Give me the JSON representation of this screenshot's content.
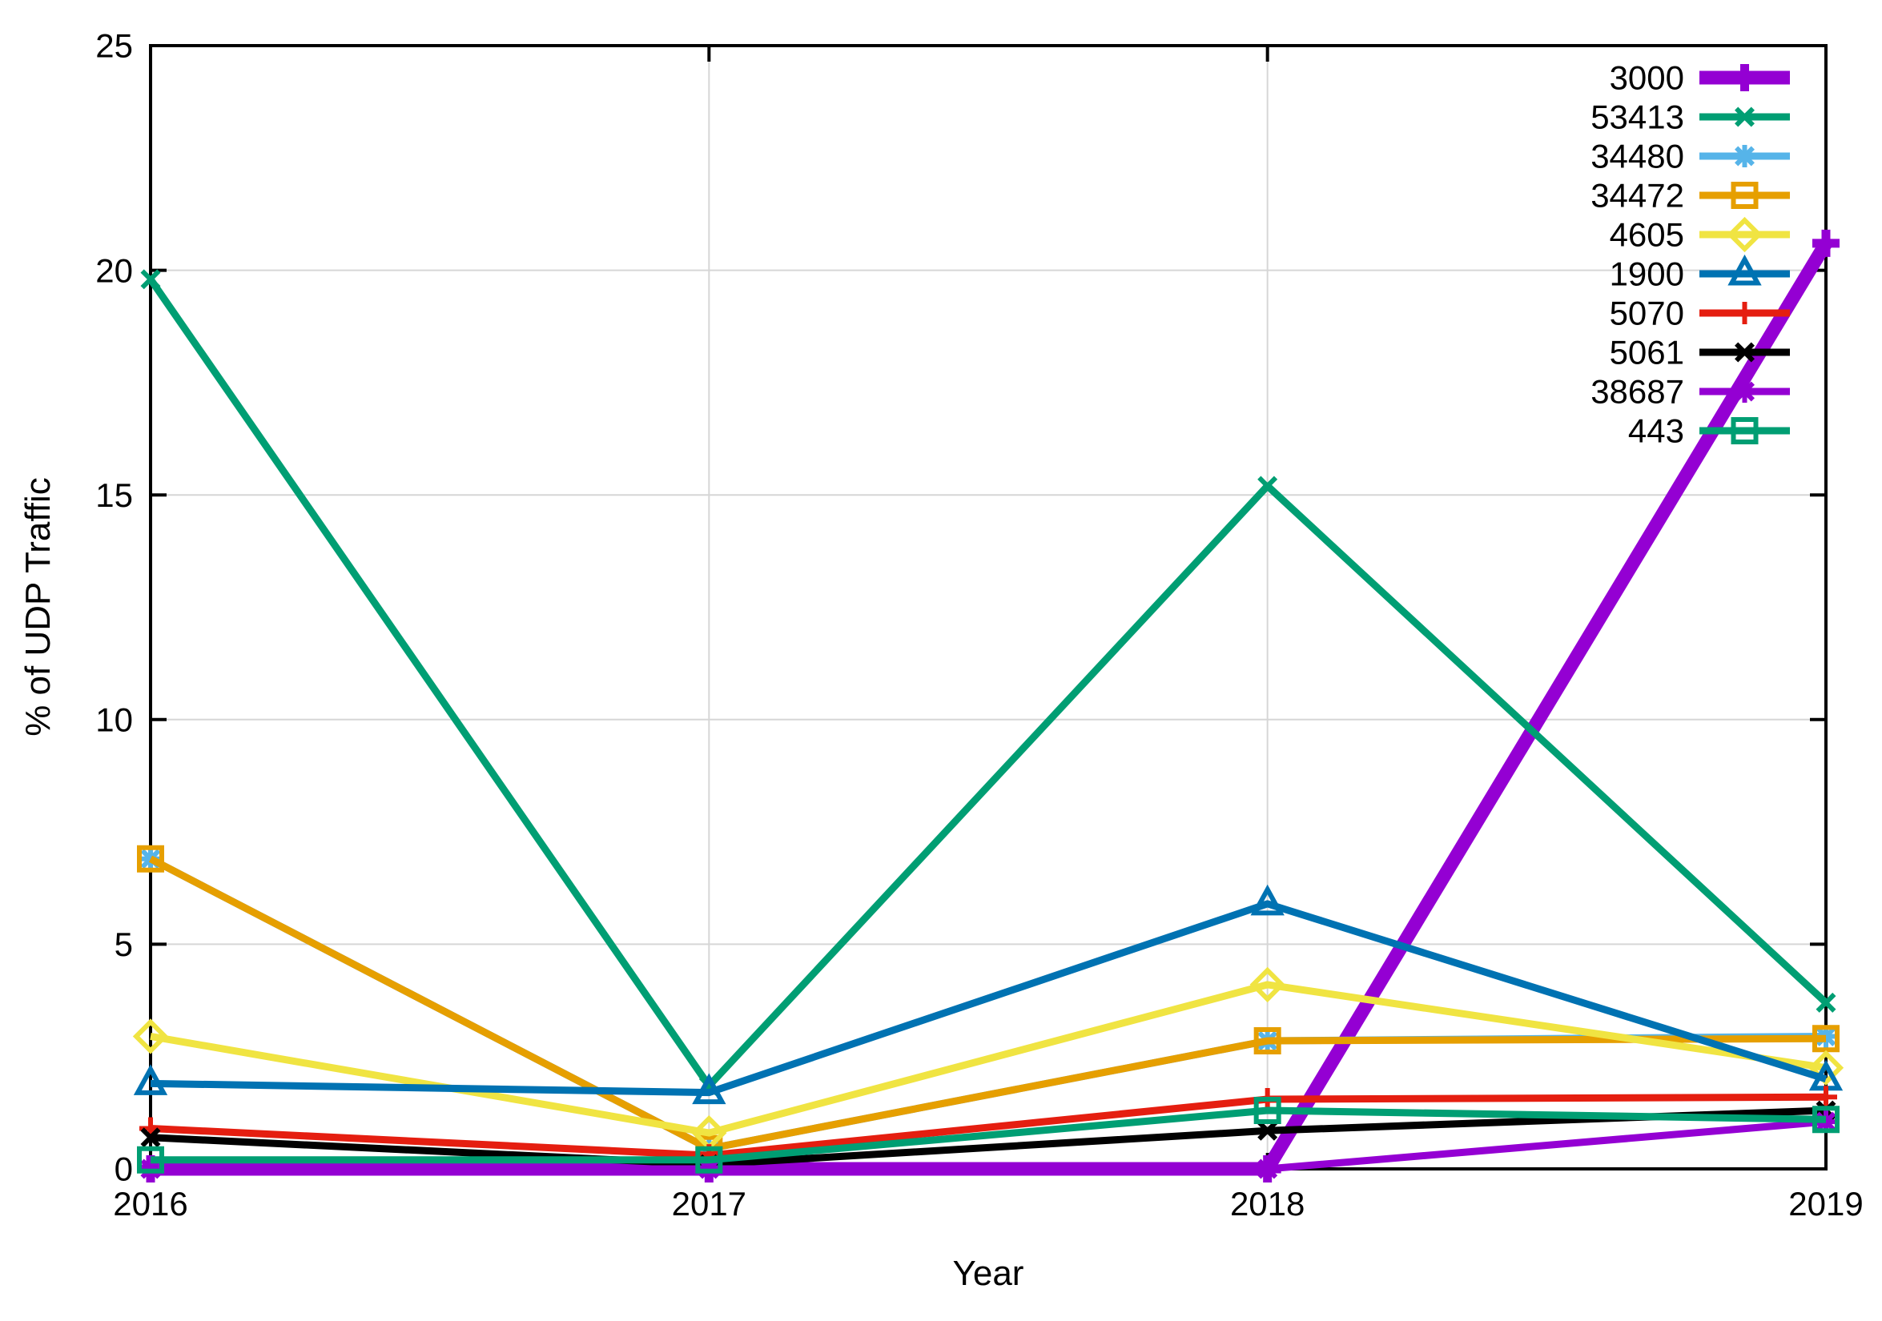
{
  "chart_data": {
    "type": "line",
    "title": "",
    "xlabel": "Year",
    "ylabel": "% of UDP Traffic",
    "x": [
      2016,
      2017,
      2018,
      2019
    ],
    "xlim": [
      2016,
      2019
    ],
    "ylim": [
      0,
      25
    ],
    "xticks": [
      "2016",
      "2017",
      "2018",
      "2019"
    ],
    "yticks": [
      "0",
      "5",
      "10",
      "15",
      "20",
      "25"
    ],
    "grid": true,
    "grid_color": "#d6d6d6",
    "axis_color": "#000000",
    "background": "#ffffff",
    "legend_position": "top-right-inside",
    "legend_border": false,
    "series": [
      {
        "name": "3000",
        "color": "#9400D3",
        "marker": "plus-icon",
        "thick": true,
        "values": [
          0,
          0,
          0,
          20.6
        ]
      },
      {
        "name": "53413",
        "color": "#009E73",
        "marker": "cross-icon",
        "thick": false,
        "values": [
          19.8,
          1.85,
          15.2,
          3.7
        ]
      },
      {
        "name": "34480",
        "color": "#56B4E9",
        "marker": "asterisk-icon",
        "thick": false,
        "values": [
          6.9,
          0.45,
          2.85,
          2.95
        ]
      },
      {
        "name": "34472",
        "color": "#E69F00",
        "marker": "square-icon",
        "thick": false,
        "values": [
          6.9,
          0.45,
          2.85,
          2.9
        ]
      },
      {
        "name": "4605",
        "color": "#F0E442",
        "marker": "diamond-icon",
        "thick": false,
        "values": [
          2.95,
          0.8,
          4.1,
          2.25
        ]
      },
      {
        "name": "1900",
        "color": "#0072B2",
        "marker": "triangle-icon",
        "thick": false,
        "values": [
          1.9,
          1.7,
          5.9,
          2.0
        ]
      },
      {
        "name": "5070",
        "color": "#E51E10",
        "marker": "plus-icon",
        "thick": false,
        "values": [
          0.9,
          0.3,
          1.55,
          1.6
        ]
      },
      {
        "name": "5061",
        "color": "#000000",
        "marker": "cross-icon",
        "thick": false,
        "values": [
          0.7,
          0.1,
          0.85,
          1.3
        ]
      },
      {
        "name": "38687",
        "color": "#9400D3",
        "marker": "asterisk-icon",
        "thick": false,
        "values": [
          0,
          0,
          0,
          1.05
        ]
      },
      {
        "name": "443",
        "color": "#009E73",
        "marker": "square-icon",
        "thick": false,
        "values": [
          0.2,
          0.2,
          1.3,
          1.1
        ]
      }
    ]
  }
}
